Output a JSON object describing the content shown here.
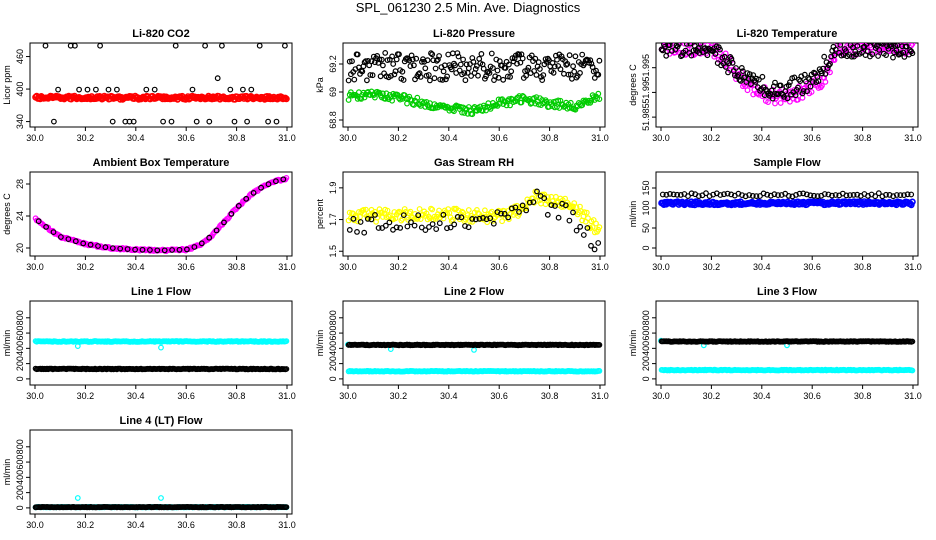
{
  "page": {
    "title": "SPL_061230  2.5 Min. Ave. Diagnostics"
  },
  "colors": {
    "black": "#000000",
    "red": "#ff0000",
    "green": "#00cc00",
    "magenta": "#ff00ff",
    "yellow": "#ffff00",
    "blue": "#0000ff",
    "cyan": "#00ffff"
  },
  "chart_data": [
    {
      "id": "co2",
      "type": "scatter",
      "title": "Li-820 CO2",
      "ylabel": "Licor ppm",
      "xlim": [
        30.0,
        31.0
      ],
      "ylim": [
        330,
        485
      ],
      "xticks": [
        30.0,
        30.2,
        30.4,
        30.6,
        30.8,
        31.0
      ],
      "yticks": [
        340,
        400,
        460
      ],
      "series": [
        {
          "name": "primary",
          "color": "#000000",
          "kind": "discrete",
          "levels": [
            340,
            399,
            420,
            480
          ],
          "probs": [
            0.28,
            0.36,
            0.1,
            0.26
          ]
        },
        {
          "name": "secondary",
          "color": "#ff0000",
          "kind": "band",
          "base": 384,
          "spread": 3,
          "thick": true
        }
      ]
    },
    {
      "id": "pressure",
      "type": "scatter",
      "title": "Li-820 Pressure",
      "ylabel": "kPa",
      "xlim": [
        30.0,
        31.0
      ],
      "ylim": [
        68.75,
        69.35
      ],
      "xticks": [
        30.0,
        30.2,
        30.4,
        30.6,
        30.8,
        31.0
      ],
      "yticks": [
        68.8,
        69.0,
        69.2
      ],
      "series": [
        {
          "name": "primary",
          "color": "#000000",
          "kind": "scatter",
          "base": 69.18,
          "spread": 0.1
        },
        {
          "name": "secondary",
          "color": "#00cc00",
          "kind": "curve",
          "knots": [
            [
              30.0,
              68.97
            ],
            [
              30.1,
              68.98
            ],
            [
              30.2,
              68.96
            ],
            [
              30.3,
              68.92
            ],
            [
              30.4,
              68.88
            ],
            [
              30.5,
              68.87
            ],
            [
              30.6,
              68.92
            ],
            [
              30.7,
              68.95
            ],
            [
              30.8,
              68.92
            ],
            [
              30.9,
              68.9
            ],
            [
              31.0,
              68.97
            ]
          ],
          "spread": 0.03
        }
      ]
    },
    {
      "id": "temp",
      "type": "scatter",
      "title": "Li-820 Temperature",
      "ylabel": "degrees C",
      "xlim": [
        30.0,
        31.0
      ],
      "ylim": [
        51.983,
        52.0
      ],
      "xticks": [
        30.0,
        30.2,
        30.4,
        30.6,
        30.8,
        31.0
      ],
      "yticks": [
        51.985,
        51.99,
        51.995
      ],
      "series": [
        {
          "name": "secondary",
          "color": "#ff00ff",
          "kind": "curve",
          "knots": [
            [
              30.0,
              51.999
            ],
            [
              30.1,
              51.999
            ],
            [
              30.2,
              51.999
            ],
            [
              30.25,
              51.997
            ],
            [
              30.35,
              51.991
            ],
            [
              30.45,
              51.989
            ],
            [
              30.55,
              51.99
            ],
            [
              30.65,
              51.993
            ],
            [
              30.7,
              51.999
            ],
            [
              31.0,
              51.999
            ]
          ],
          "spread": 0.0015
        },
        {
          "name": "primary",
          "color": "#000000",
          "kind": "curve",
          "knots": [
            [
              30.0,
              51.999
            ],
            [
              30.2,
              51.999
            ],
            [
              30.3,
              51.994
            ],
            [
              30.45,
              51.99
            ],
            [
              30.6,
              51.992
            ],
            [
              30.7,
              51.999
            ],
            [
              31.0,
              51.999
            ]
          ],
          "spread": 0.002
        }
      ]
    },
    {
      "id": "ambient",
      "type": "scatter",
      "title": "Ambient Box Temperature",
      "ylabel": "degrees C",
      "xlim": [
        30.0,
        31.0
      ],
      "ylim": [
        19.0,
        29.5
      ],
      "xticks": [
        30.0,
        30.2,
        30.4,
        30.6,
        30.8,
        31.0
      ],
      "yticks": [
        20,
        24,
        28
      ],
      "series": [
        {
          "name": "secondary",
          "color": "#ff00ff",
          "kind": "curve",
          "knots": [
            [
              30.0,
              23.7
            ],
            [
              30.05,
              22.5
            ],
            [
              30.1,
              21.4
            ],
            [
              30.2,
              20.5
            ],
            [
              30.3,
              20.0
            ],
            [
              30.4,
              19.8
            ],
            [
              30.5,
              19.7
            ],
            [
              30.6,
              19.8
            ],
            [
              30.65,
              20.3
            ],
            [
              30.7,
              21.5
            ],
            [
              30.75,
              23.2
            ],
            [
              30.8,
              25.0
            ],
            [
              30.85,
              26.5
            ],
            [
              30.9,
              27.6
            ],
            [
              30.95,
              28.3
            ],
            [
              31.0,
              28.7
            ]
          ],
          "spread": 0.12
        },
        {
          "name": "primary",
          "color": "#000000",
          "kind": "markers",
          "knots": [
            [
              30.0,
              23.7
            ],
            [
              30.05,
              22.5
            ],
            [
              30.1,
              21.4
            ],
            [
              30.2,
              20.5
            ],
            [
              30.3,
              20.0
            ],
            [
              30.4,
              19.8
            ],
            [
              30.5,
              19.7
            ],
            [
              30.6,
              19.8
            ],
            [
              30.65,
              20.3
            ],
            [
              30.7,
              21.5
            ],
            [
              30.75,
              23.2
            ],
            [
              30.8,
              25.0
            ],
            [
              30.85,
              26.5
            ],
            [
              30.9,
              27.6
            ],
            [
              30.95,
              28.3
            ],
            [
              31.0,
              28.7
            ]
          ],
          "count": 34
        }
      ]
    },
    {
      "id": "rh",
      "type": "scatter",
      "title": "Gas Stream RH",
      "ylabel": "percent",
      "xlim": [
        30.0,
        31.0
      ],
      "ylim": [
        1.47,
        2.0
      ],
      "xticks": [
        30.0,
        30.2,
        30.4,
        30.6,
        30.8,
        31.0
      ],
      "yticks": [
        1.5,
        1.7,
        1.9
      ],
      "series": [
        {
          "name": "secondary",
          "color": "#ffff00",
          "kind": "curve",
          "knots": [
            [
              30.0,
              1.72
            ],
            [
              30.2,
              1.73
            ],
            [
              30.4,
              1.73
            ],
            [
              30.6,
              1.72
            ],
            [
              30.7,
              1.77
            ],
            [
              30.75,
              1.85
            ],
            [
              30.8,
              1.82
            ],
            [
              30.9,
              1.78
            ],
            [
              31.0,
              1.62
            ]
          ],
          "spread": 0.04
        },
        {
          "name": "primary",
          "color": "#000000",
          "kind": "curve",
          "knots": [
            [
              30.0,
              1.67
            ],
            [
              30.2,
              1.68
            ],
            [
              30.4,
              1.7
            ],
            [
              30.6,
              1.72
            ],
            [
              30.75,
              1.82
            ],
            [
              30.85,
              1.75
            ],
            [
              30.95,
              1.62
            ],
            [
              31.0,
              1.5
            ]
          ],
          "spread": 0.06,
          "sparse": true
        }
      ]
    },
    {
      "id": "sample",
      "type": "scatter",
      "title": "Sample Flow",
      "ylabel": "ml/min",
      "xlim": [
        30.0,
        31.0
      ],
      "ylim": [
        -20,
        190
      ],
      "xticks": [
        30.0,
        30.2,
        30.4,
        30.6,
        30.8,
        31.0
      ],
      "yticks": [
        0,
        50,
        100,
        150
      ],
      "series": [
        {
          "name": "secondary",
          "color": "#0000ff",
          "kind": "band",
          "base": 112,
          "spread": 4,
          "thick": true
        },
        {
          "name": "primary",
          "color": "#000000",
          "kind": "band",
          "base": 133,
          "spread": 4,
          "sparse": true
        }
      ]
    },
    {
      "id": "line1",
      "type": "scatter",
      "title": "Line 1 Flow",
      "ylabel": "ml/min",
      "xlim": [
        30.0,
        31.0
      ],
      "ylim": [
        -80,
        1020
      ],
      "xticks": [
        30.0,
        30.2,
        30.4,
        30.6,
        30.8,
        31.0
      ],
      "yticks": [
        0,
        200,
        400,
        600,
        800
      ],
      "series": [
        {
          "name": "secondary",
          "color": "#00ffff",
          "kind": "band",
          "base": 490,
          "spread": 6,
          "outliers": [
            [
              30.17,
              430
            ],
            [
              30.5,
              410
            ]
          ]
        },
        {
          "name": "primary",
          "color": "#000000",
          "kind": "band",
          "base": 130,
          "spread": 5
        }
      ]
    },
    {
      "id": "line2",
      "type": "scatter",
      "title": "Line 2 Flow",
      "ylabel": "ml/min",
      "xlim": [
        30.0,
        31.0
      ],
      "ylim": [
        -80,
        1020
      ],
      "xticks": [
        30.0,
        30.2,
        30.4,
        30.6,
        30.8,
        31.0
      ],
      "yticks": [
        0,
        200,
        400,
        600,
        800
      ],
      "series": [
        {
          "name": "secondary",
          "color": "#00ffff",
          "kind": "band",
          "base": 100,
          "spread": 5,
          "outliers": [
            [
              30.0,
              450
            ],
            [
              30.17,
              390
            ],
            [
              30.5,
              380
            ]
          ]
        },
        {
          "name": "primary",
          "color": "#000000",
          "kind": "band",
          "base": 445,
          "spread": 5
        }
      ]
    },
    {
      "id": "line3",
      "type": "scatter",
      "title": "Line 3 Flow",
      "ylabel": "ml/min",
      "xlim": [
        30.0,
        31.0
      ],
      "ylim": [
        -80,
        1020
      ],
      "xticks": [
        30.0,
        30.2,
        30.4,
        30.6,
        30.8,
        31.0
      ],
      "yticks": [
        0,
        200,
        400,
        600,
        800
      ],
      "series": [
        {
          "name": "secondary",
          "color": "#00ffff",
          "kind": "band",
          "base": 115,
          "spread": 5,
          "outliers": [
            [
              30.0,
              500
            ],
            [
              30.17,
              440
            ],
            [
              30.5,
              440
            ]
          ]
        },
        {
          "name": "primary",
          "color": "#000000",
          "kind": "band",
          "base": 490,
          "spread": 5
        }
      ]
    },
    {
      "id": "line4",
      "type": "scatter",
      "title": "Line 4 (LT) Flow",
      "ylabel": "ml/min",
      "xlim": [
        30.0,
        31.0
      ],
      "ylim": [
        -80,
        1020
      ],
      "xticks": [
        30.0,
        30.2,
        30.4,
        30.6,
        30.8,
        31.0
      ],
      "yticks": [
        0,
        200,
        400,
        600,
        800
      ],
      "series": [
        {
          "name": "secondary",
          "color": "#00ffff",
          "kind": "band",
          "base": 10,
          "spread": 3,
          "outliers": [
            [
              30.17,
              130
            ],
            [
              30.5,
              130
            ]
          ]
        },
        {
          "name": "primary",
          "color": "#000000",
          "kind": "band",
          "base": 10,
          "spread": 3
        }
      ]
    }
  ]
}
